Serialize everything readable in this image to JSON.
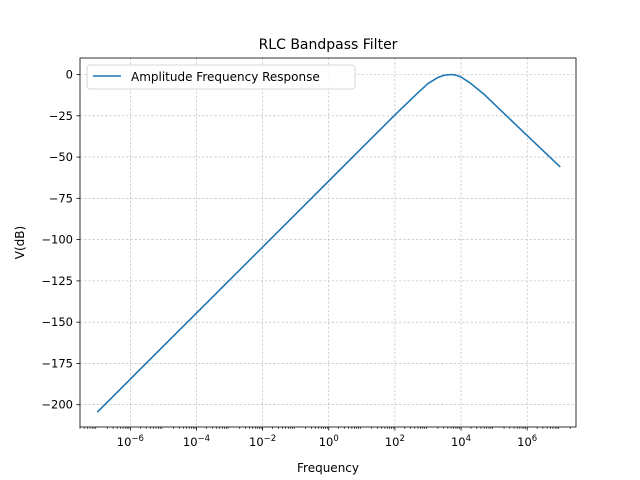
{
  "chart_data": {
    "type": "line",
    "title": "RLC Bandpass Filter",
    "xlabel": "Frequency",
    "ylabel": "V(dB)",
    "xscale": "log",
    "xlim": [
      3e-08,
      30000000.0
    ],
    "ylim": [
      -213.5,
      10
    ],
    "grid": true,
    "legend_position": "upper-left",
    "line_color": "#1f77b4",
    "x_ticks": [
      {
        "value": 1e-06,
        "base": "10",
        "exp": "−6"
      },
      {
        "value": 0.0001,
        "base": "10",
        "exp": "−4"
      },
      {
        "value": 0.01,
        "base": "10",
        "exp": "−2"
      },
      {
        "value": 1.0,
        "base": "10",
        "exp": "0"
      },
      {
        "value": 100.0,
        "base": "10",
        "exp": "2"
      },
      {
        "value": 10000.0,
        "base": "10",
        "exp": "4"
      },
      {
        "value": 1000000.0,
        "base": "10",
        "exp": "6"
      }
    ],
    "y_ticks": [
      {
        "value": 0,
        "label": "0"
      },
      {
        "value": -25,
        "label": "−25"
      },
      {
        "value": -50,
        "label": "−50"
      },
      {
        "value": -75,
        "label": "−75"
      },
      {
        "value": -100,
        "label": "−100"
      },
      {
        "value": -125,
        "label": "−125"
      },
      {
        "value": -150,
        "label": "−150"
      },
      {
        "value": -175,
        "label": "−175"
      },
      {
        "value": -200,
        "label": "−200"
      }
    ],
    "series": [
      {
        "name": "Amplitude Frequency Response",
        "x": [
          1e-07,
          1e-06,
          1e-05,
          0.0001,
          0.001,
          0.01,
          0.1,
          1,
          10,
          100,
          500,
          1000,
          2000,
          3000,
          5000,
          7000,
          10000,
          20000,
          50000,
          100000,
          1000000,
          10000000
        ],
        "y": [
          -204.5,
          -184.5,
          -164.5,
          -144.5,
          -124.5,
          -104.5,
          -84.5,
          -64.5,
          -44.5,
          -24.5,
          -11,
          -5.5,
          -1.8,
          -0.5,
          0,
          -0.4,
          -1.5,
          -5.5,
          -12,
          -17.8,
          -37,
          -56
        ]
      }
    ]
  }
}
